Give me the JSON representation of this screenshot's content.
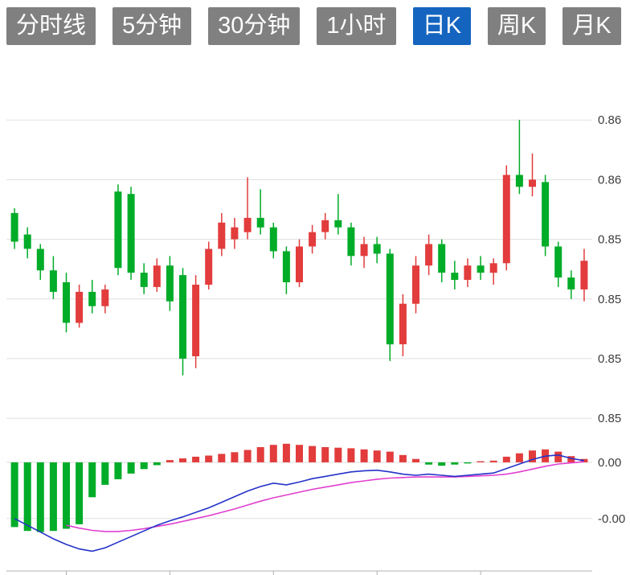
{
  "toolbar": {
    "tabs": [
      {
        "label": "分时线",
        "active": false
      },
      {
        "label": "5分钟",
        "active": false
      },
      {
        "label": "30分钟",
        "active": false
      },
      {
        "label": "1小时",
        "active": false
      },
      {
        "label": "日K",
        "active": true
      },
      {
        "label": "周K",
        "active": false
      },
      {
        "label": "月K",
        "active": false
      }
    ],
    "active_color": "#1565c0",
    "inactive_color": "#808080",
    "text_color": "#ffffff"
  },
  "chart_data": {
    "type": "candlestick",
    "title": "",
    "legend_position": "none",
    "grid": true,
    "price_panel": {
      "ylim": [
        0.8471,
        0.8624
      ],
      "gridlines": [
        {
          "value": 0.86,
          "label": "0.86"
        },
        {
          "value": 0.8575,
          "label": "0.86"
        },
        {
          "value": 0.855,
          "label": "0.85"
        },
        {
          "value": 0.8525,
          "label": "0.85"
        },
        {
          "value": 0.85,
          "label": "0.85"
        },
        {
          "value": 0.8475,
          "label": "0.85"
        }
      ],
      "candles": [
        [
          0.8561,
          0.8563,
          0.8546,
          0.8549
        ],
        [
          0.8552,
          0.8555,
          0.8542,
          0.8546
        ],
        [
          0.8546,
          0.8548,
          0.8533,
          0.8537
        ],
        [
          0.8537,
          0.8543,
          0.8525,
          0.8528
        ],
        [
          0.8532,
          0.8536,
          0.8511,
          0.8515
        ],
        [
          0.8515,
          0.8531,
          0.8513,
          0.8528
        ],
        [
          0.8528,
          0.8533,
          0.8519,
          0.8522
        ],
        [
          0.8522,
          0.8531,
          0.8519,
          0.8529
        ],
        [
          0.857,
          0.8573,
          0.8535,
          0.8538
        ],
        [
          0.8569,
          0.8572,
          0.8533,
          0.8536
        ],
        [
          0.8536,
          0.854,
          0.8527,
          0.853
        ],
        [
          0.853,
          0.8542,
          0.8528,
          0.8539
        ],
        [
          0.8539,
          0.8543,
          0.852,
          0.8524
        ],
        [
          0.8535,
          0.8538,
          0.8493,
          0.85
        ],
        [
          0.8501,
          0.8535,
          0.8496,
          0.8531
        ],
        [
          0.8531,
          0.8549,
          0.8529,
          0.8546
        ],
        [
          0.8546,
          0.8561,
          0.8543,
          0.8557
        ],
        [
          0.855,
          0.8559,
          0.8546,
          0.8555
        ],
        [
          0.8553,
          0.8576,
          0.855,
          0.8559
        ],
        [
          0.8559,
          0.8571,
          0.8552,
          0.8555
        ],
        [
          0.8555,
          0.8557,
          0.8542,
          0.8545
        ],
        [
          0.8545,
          0.8547,
          0.8527,
          0.8532
        ],
        [
          0.8532,
          0.855,
          0.853,
          0.8547
        ],
        [
          0.8547,
          0.8556,
          0.8544,
          0.8553
        ],
        [
          0.8553,
          0.8561,
          0.855,
          0.8558
        ],
        [
          0.8558,
          0.8569,
          0.8552,
          0.8555
        ],
        [
          0.8555,
          0.8557,
          0.8539,
          0.8543
        ],
        [
          0.8543,
          0.8551,
          0.8538,
          0.8548
        ],
        [
          0.8548,
          0.8551,
          0.854,
          0.8544
        ],
        [
          0.8544,
          0.8546,
          0.8499,
          0.8506
        ],
        [
          0.8506,
          0.8527,
          0.8501,
          0.8523
        ],
        [
          0.8523,
          0.8543,
          0.8519,
          0.8539
        ],
        [
          0.8539,
          0.8552,
          0.8535,
          0.8548
        ],
        [
          0.8548,
          0.855,
          0.8532,
          0.8536
        ],
        [
          0.8536,
          0.8541,
          0.8529,
          0.8533
        ],
        [
          0.8533,
          0.8542,
          0.853,
          0.8539
        ],
        [
          0.8539,
          0.8543,
          0.8533,
          0.8536
        ],
        [
          0.8536,
          0.8542,
          0.8531,
          0.854
        ],
        [
          0.854,
          0.8581,
          0.8537,
          0.8577
        ],
        [
          0.8577,
          0.86,
          0.8569,
          0.8572
        ],
        [
          0.8572,
          0.8586,
          0.8568,
          0.8575
        ],
        [
          0.8574,
          0.8577,
          0.8543,
          0.8547
        ],
        [
          0.8547,
          0.8549,
          0.853,
          0.8534
        ],
        [
          0.8534,
          0.8537,
          0.8525,
          0.8529
        ],
        [
          0.8529,
          0.8546,
          0.8524,
          0.8541
        ]
      ]
    },
    "macd_panel": {
      "ylim": [
        -0.00196,
        0.00047
      ],
      "gridlines": [
        {
          "value": 0,
          "label": "0.00"
        },
        {
          "value": -0.001,
          "label": "-0.00"
        }
      ],
      "histogram": [
        -0.00115,
        -0.00122,
        -0.00124,
        -0.00122,
        -0.00118,
        -0.0011,
        -0.00062,
        -0.0004,
        -0.0003,
        -0.0002,
        -0.00012,
        -5e-05,
        4e-05,
        7e-05,
        0.0001,
        0.00012,
        0.00015,
        0.00018,
        0.00022,
        0.00027,
        0.00031,
        0.00033,
        0.00031,
        0.00029,
        0.00027,
        0.00026,
        0.00025,
        0.00023,
        0.00021,
        0.00019,
        0.00013,
        6e-05,
        -4e-05,
        -6e-05,
        -4e-05,
        -2e-05,
        2e-05,
        3e-05,
        0.0001,
        0.00016,
        0.00021,
        0.00023,
        0.00019,
        0.00011,
        6e-05
      ],
      "dif": [
        -0.001,
        -0.00112,
        -0.00124,
        -0.00136,
        -0.00146,
        -0.00154,
        -0.00158,
        -0.00152,
        -0.00142,
        -0.00132,
        -0.00122,
        -0.00112,
        -0.00104,
        -0.00097,
        -0.00089,
        -0.00081,
        -0.00071,
        -0.00061,
        -0.00051,
        -0.00043,
        -0.00037,
        -0.0004,
        -0.00035,
        -0.00029,
        -0.00025,
        -0.00021,
        -0.00017,
        -0.00015,
        -0.00014,
        -0.00017,
        -0.00021,
        -0.00023,
        -0.00021,
        -0.00023,
        -0.00025,
        -0.00023,
        -0.00021,
        -0.00019,
        -0.00011,
        -3e-05,
        5e-05,
        0.00011,
        0.00013,
        7e-05,
        3e-05
      ],
      "dea": [
        null,
        null,
        null,
        null,
        -0.00112,
        -0.00117,
        -0.00121,
        -0.00123,
        -0.00123,
        -0.00121,
        -0.00118,
        -0.00114,
        -0.0011,
        -0.00105,
        -0.001,
        -0.00095,
        -0.00089,
        -0.00083,
        -0.00076,
        -0.00069,
        -0.00063,
        -0.00058,
        -0.00053,
        -0.00048,
        -0.00044,
        -0.0004,
        -0.00036,
        -0.00033,
        -0.0003,
        -0.00028,
        -0.00027,
        -0.00026,
        -0.00026,
        -0.00026,
        -0.00026,
        -0.00025,
        -0.00024,
        -0.00023,
        -0.00021,
        -0.00017,
        -0.00012,
        -7e-05,
        -3e-05,
        -1e-05,
        1e-05
      ]
    },
    "x_axis": {
      "tick_candle_indices": [
        4,
        12,
        20,
        28,
        36
      ]
    },
    "colors": {
      "up": "#e23c3c",
      "down": "#00ac28",
      "dif": "#2433c8",
      "dea": "#e040d0",
      "grid": "#dfdfdf",
      "axis_text": "#3c3c3c",
      "axis_line": "#b0b0b0"
    }
  }
}
